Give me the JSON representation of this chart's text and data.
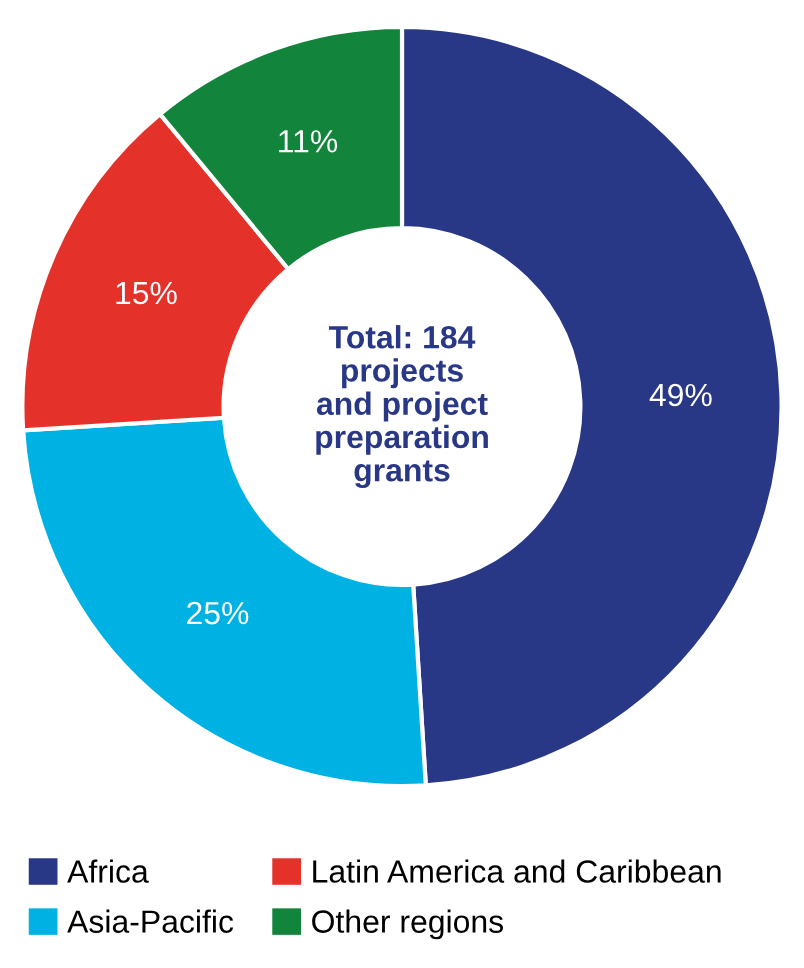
{
  "chart_data": {
    "type": "donut",
    "categories": [
      "Africa",
      "Asia-Pacific",
      "Latin America and Caribbean",
      "Other regions"
    ],
    "values": [
      49,
      25,
      15,
      11
    ],
    "colors": [
      "#293886",
      "#00b2e3",
      "#e4322b",
      "#13843b"
    ],
    "value_labels": [
      "49%",
      "25%",
      "15%",
      "11%"
    ],
    "annotations": [
      "Total: 184\nprojects\nand project\npreparation\ngrants"
    ],
    "legend": "bottom"
  }
}
